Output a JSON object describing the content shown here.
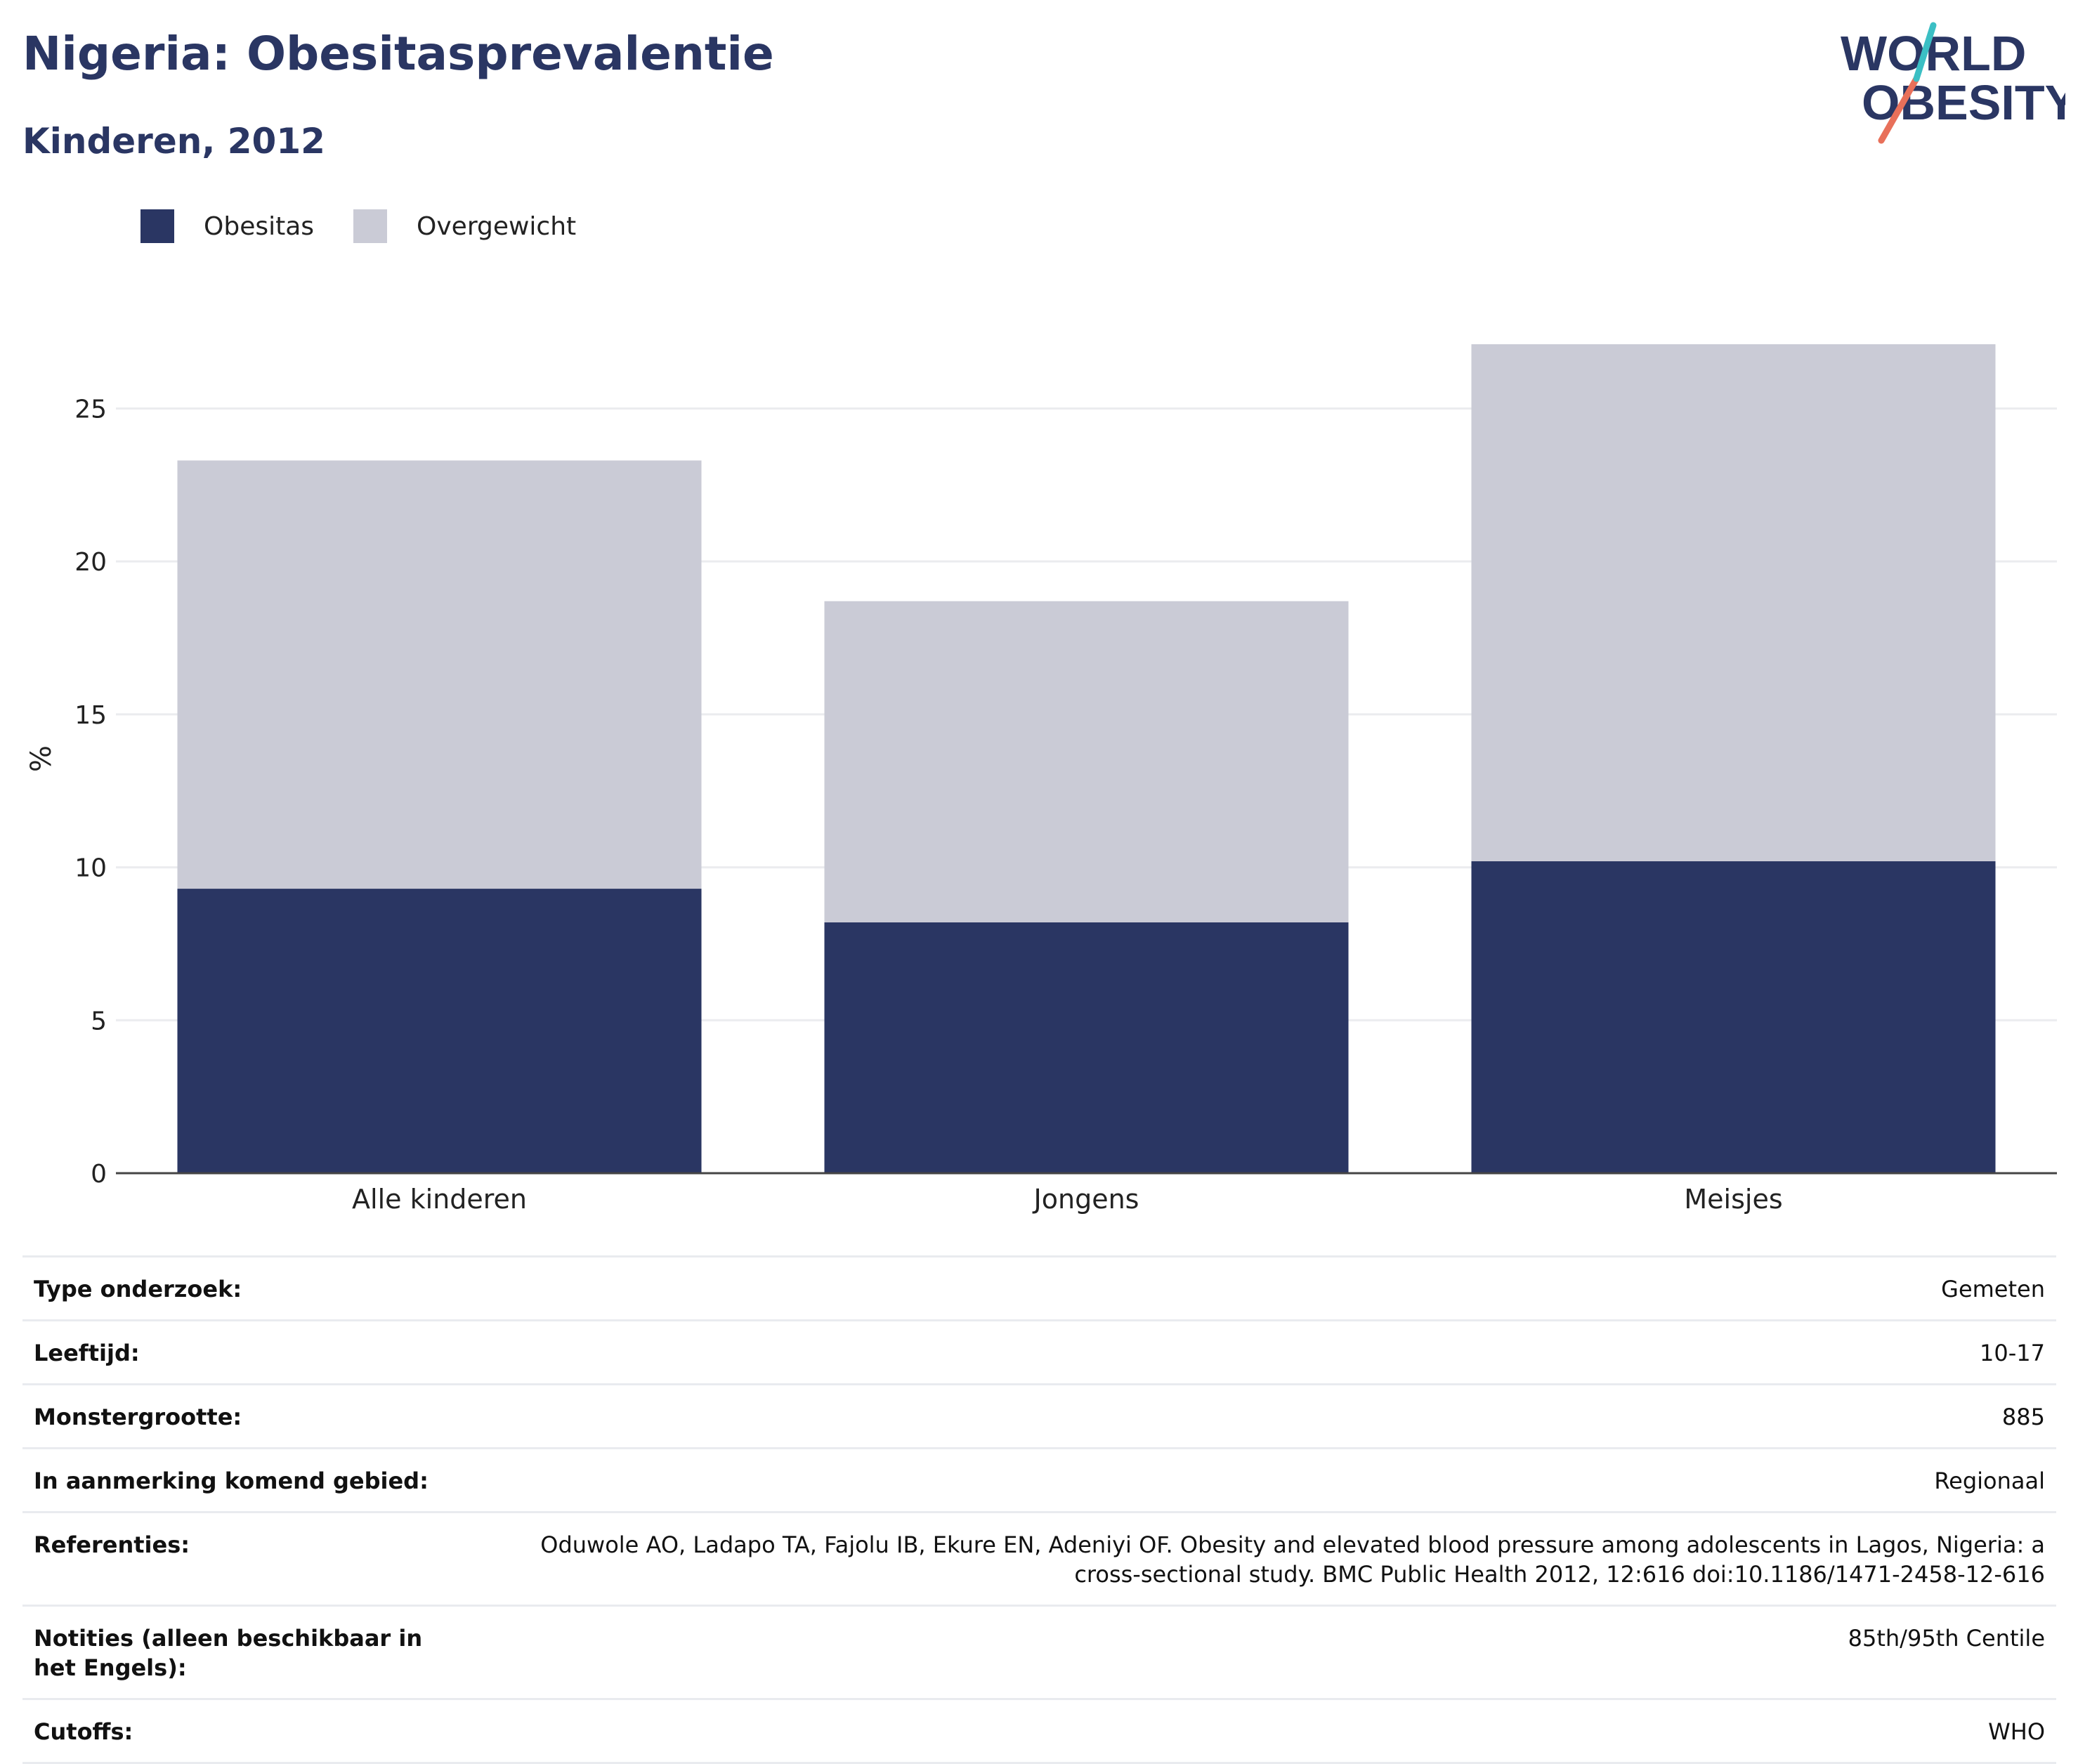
{
  "header": {
    "title": "Nigeria: Obesitasprevalentie",
    "subtitle": "Kinderen, 2012",
    "logo_line1": "WORLD",
    "logo_line2": "OBESITY"
  },
  "colors": {
    "obesitas": "#2a3663",
    "overgewicht": "#cacbd6",
    "title": "#2a3663",
    "logo_teal": "#3bbfc4",
    "logo_coral": "#e8705a"
  },
  "chart_data": {
    "type": "bar",
    "stacked": true,
    "categories": [
      "Alle kinderen",
      "Jongens",
      "Meisjes"
    ],
    "series": [
      {
        "name": "Obesitas",
        "values": [
          9.3,
          8.2,
          10.2
        ]
      },
      {
        "name": "Overgewicht",
        "values": [
          14.0,
          10.5,
          16.9
        ]
      }
    ],
    "ylabel": "%",
    "xlabel": "",
    "ylim": [
      0,
      27.1
    ],
    "yticks": [
      0,
      5,
      10,
      15,
      20,
      25
    ],
    "grid": true,
    "legend_position": "top-left"
  },
  "meta": [
    {
      "key": "Type onderzoek:",
      "value": "Gemeten"
    },
    {
      "key": "Leeftijd:",
      "value": "10-17"
    },
    {
      "key": "Monstergrootte:",
      "value": "885"
    },
    {
      "key": "In aanmerking komend gebied:",
      "value": "Regionaal"
    },
    {
      "key": "Referenties:",
      "value": "Oduwole AO, Ladapo TA, Fajolu IB, Ekure EN, Adeniyi OF. Obesity and elevated blood pressure among adolescents in Lagos, Nigeria: a cross-sectional study. BMC Public Health 2012, 12:616 doi:10.1186/1471-2458-12-616"
    },
    {
      "key": "Notities (alleen beschikbaar in het Engels):",
      "value": "85th/95th Centile"
    },
    {
      "key": "Cutoffs:",
      "value": "WHO"
    }
  ]
}
